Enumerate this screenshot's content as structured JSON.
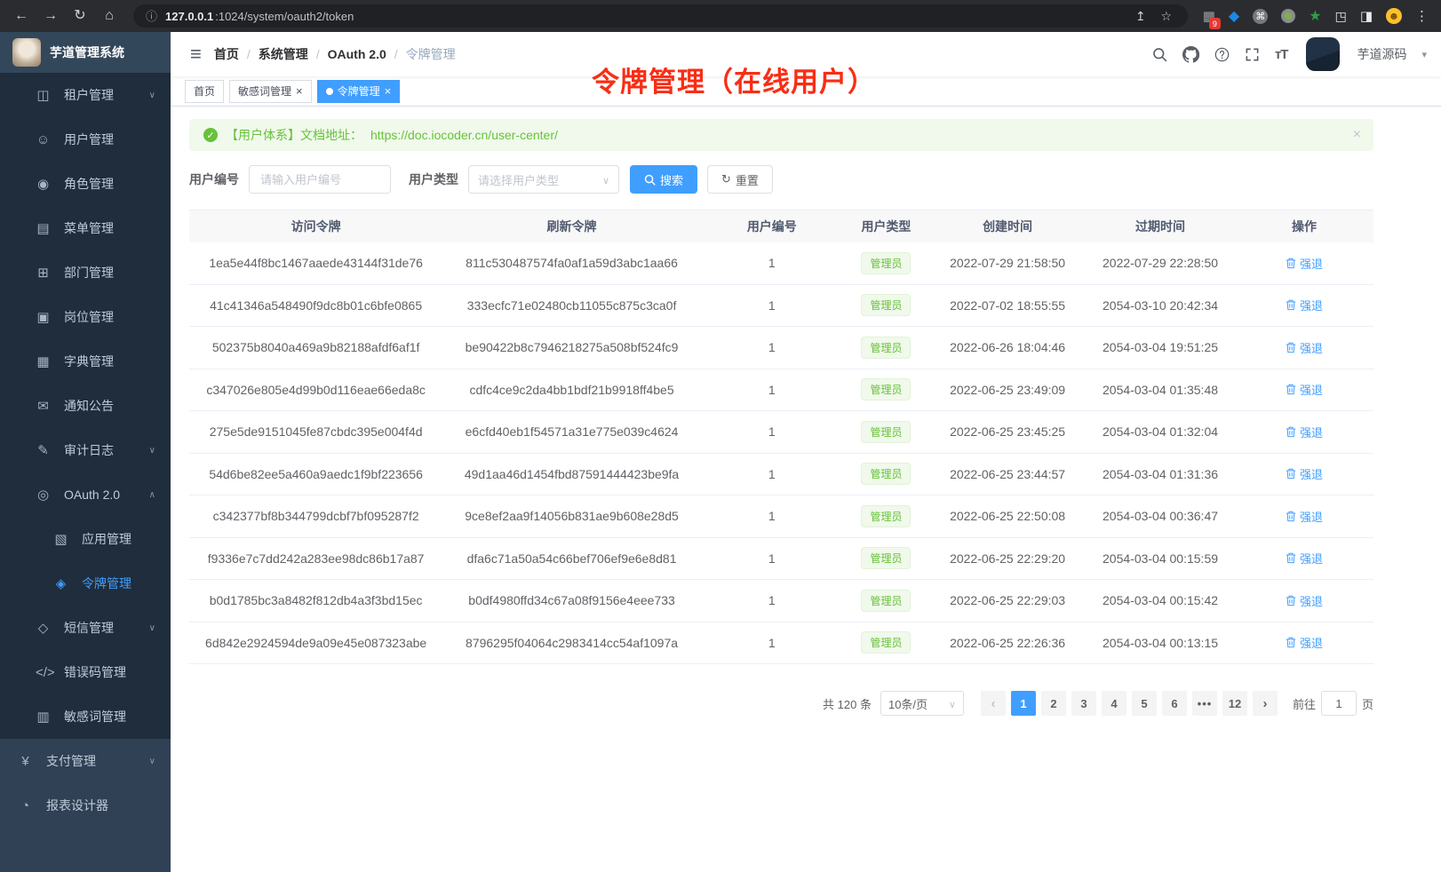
{
  "browser": {
    "url_host": "127.0.0.1",
    "url_path": ":1024/system/oauth2/token",
    "nav_icons": [
      {
        "name": "back-icon"
      },
      {
        "name": "forward-icon"
      },
      {
        "name": "reload-icon"
      },
      {
        "name": "home-icon"
      }
    ],
    "extension_icons": [
      {
        "name": "extension-grid-icon",
        "badge": "9"
      },
      {
        "name": "gem-icon"
      },
      {
        "name": "command-circle-icon"
      },
      {
        "name": "record-circle-icon"
      },
      {
        "name": "green-star-icon"
      },
      {
        "name": "puzzle-icon"
      },
      {
        "name": "side-panel-icon"
      },
      {
        "name": "emoji-avatar-icon"
      },
      {
        "name": "menu-kebab-icon"
      }
    ]
  },
  "sidebar": {
    "app_title": "芋道管理系统",
    "menu": [
      {
        "label": "租户管理",
        "icon": "tenant-users-icon",
        "chevron": "down"
      },
      {
        "label": "用户管理",
        "icon": "user-icon"
      },
      {
        "label": "角色管理",
        "icon": "role-users-icon"
      },
      {
        "label": "菜单管理",
        "icon": "menu-tree-icon"
      },
      {
        "label": "部门管理",
        "icon": "org-tree-icon"
      },
      {
        "label": "岗位管理",
        "icon": "post-badge-icon"
      },
      {
        "label": "字典管理",
        "icon": "dictionary-icon"
      },
      {
        "label": "通知公告",
        "icon": "notice-icon"
      },
      {
        "label": "审计日志",
        "icon": "audit-log-icon",
        "chevron": "down"
      },
      {
        "label": "OAuth 2.0",
        "icon": "oauth-icon",
        "chevron": "up"
      },
      {
        "label": "应用管理",
        "icon": "app-icon",
        "sub": true
      },
      {
        "label": "令牌管理",
        "icon": "token-signal-icon",
        "sub": true,
        "active": true
      },
      {
        "label": "短信管理",
        "icon": "sms-shield-icon",
        "chevron": "down"
      },
      {
        "label": "错误码管理",
        "icon": "error-code-icon"
      },
      {
        "label": "敏感词管理",
        "icon": "sensitive-word-icon"
      }
    ],
    "root_menu": [
      {
        "label": "支付管理",
        "icon": "pay-icon",
        "chevron": "down"
      },
      {
        "label": "报表设计器",
        "icon": "report-icon"
      }
    ]
  },
  "navbar": {
    "breadcrumb": [
      "首页",
      "系统管理",
      "OAuth 2.0",
      "令牌管理"
    ],
    "right_icons": [
      {
        "name": "search-icon"
      },
      {
        "name": "github-icon"
      },
      {
        "name": "help-icon"
      },
      {
        "name": "fullscreen-icon"
      },
      {
        "name": "font-size-icon"
      }
    ],
    "username": "芋道源码"
  },
  "tags": [
    {
      "label": "首页"
    },
    {
      "label": "敏感词管理",
      "closable": true
    },
    {
      "label": "令牌管理",
      "closable": true,
      "active": true
    }
  ],
  "annotation": "令牌管理（在线用户）",
  "alert": {
    "text": "【用户体系】文档地址：",
    "link": "https://doc.iocoder.cn/user-center/"
  },
  "filters": {
    "user_id_label": "用户编号",
    "user_id_placeholder": "请输入用户编号",
    "user_type_label": "用户类型",
    "user_type_placeholder": "请选择用户类型",
    "search_label": "搜索",
    "reset_label": "重置"
  },
  "table": {
    "columns": [
      "访问令牌",
      "刷新令牌",
      "用户编号",
      "用户类型",
      "创建时间",
      "过期时间",
      "操作"
    ],
    "rows": [
      {
        "access": "1ea5e44f8bc1467aaede43144f31de76",
        "refresh": "811c530487574fa0af1a59d3abc1aa66",
        "user_id": "1",
        "user_type": "管理员",
        "created": "2022-07-29 21:58:50",
        "expires": "2022-07-29 22:28:50",
        "action": "强退"
      },
      {
        "access": "41c41346a548490f9dc8b01c6bfe0865",
        "refresh": "333ecfc71e02480cb11055c875c3ca0f",
        "user_id": "1",
        "user_type": "管理员",
        "created": "2022-07-02 18:55:55",
        "expires": "2054-03-10 20:42:34",
        "action": "强退"
      },
      {
        "access": "502375b8040a469a9b82188afdf6af1f",
        "refresh": "be90422b8c7946218275a508bf524fc9",
        "user_id": "1",
        "user_type": "管理员",
        "created": "2022-06-26 18:04:46",
        "expires": "2054-03-04 19:51:25",
        "action": "强退"
      },
      {
        "access": "c347026e805e4d99b0d116eae66eda8c",
        "refresh": "cdfc4ce9c2da4bb1bdf21b9918ff4be5",
        "user_id": "1",
        "user_type": "管理员",
        "created": "2022-06-25 23:49:09",
        "expires": "2054-03-04 01:35:48",
        "action": "强退"
      },
      {
        "access": "275e5de9151045fe87cbdc395e004f4d",
        "refresh": "e6cfd40eb1f54571a31e775e039c4624",
        "user_id": "1",
        "user_type": "管理员",
        "created": "2022-06-25 23:45:25",
        "expires": "2054-03-04 01:32:04",
        "action": "强退"
      },
      {
        "access": "54d6be82ee5a460a9aedc1f9bf223656",
        "refresh": "49d1aa46d1454fbd87591444423be9fa",
        "user_id": "1",
        "user_type": "管理员",
        "created": "2022-06-25 23:44:57",
        "expires": "2054-03-04 01:31:36",
        "action": "强退"
      },
      {
        "access": "c342377bf8b344799dcbf7bf095287f2",
        "refresh": "9ce8ef2aa9f14056b831ae9b608e28d5",
        "user_id": "1",
        "user_type": "管理员",
        "created": "2022-06-25 22:50:08",
        "expires": "2054-03-04 00:36:47",
        "action": "强退"
      },
      {
        "access": "f9336e7c7dd242a283ee98dc86b17a87",
        "refresh": "dfa6c71a50a54c66bef706ef9e6e8d81",
        "user_id": "1",
        "user_type": "管理员",
        "created": "2022-06-25 22:29:20",
        "expires": "2054-03-04 00:15:59",
        "action": "强退"
      },
      {
        "access": "b0d1785bc3a8482f812db4a3f3bd15ec",
        "refresh": "b0df4980ffd34c67a08f9156e4eee733",
        "user_id": "1",
        "user_type": "管理员",
        "created": "2022-06-25 22:29:03",
        "expires": "2054-03-04 00:15:42",
        "action": "强退"
      },
      {
        "access": "6d842e2924594de9a09e45e087323abe",
        "refresh": "8796295f04064c2983414cc54af1097a",
        "user_id": "1",
        "user_type": "管理员",
        "created": "2022-06-25 22:26:36",
        "expires": "2054-03-04 00:13:15",
        "action": "强退"
      }
    ]
  },
  "pagination": {
    "total": "共 120 条",
    "page_size": "10条/页",
    "pages": [
      {
        "label": "1",
        "active": true
      },
      {
        "label": "2"
      },
      {
        "label": "3"
      },
      {
        "label": "4"
      },
      {
        "label": "5"
      },
      {
        "label": "6"
      },
      {
        "label": "•••",
        "more": true
      },
      {
        "label": "12"
      }
    ],
    "goto_label": "前往",
    "goto_value": "1",
    "goto_suffix": "页"
  }
}
